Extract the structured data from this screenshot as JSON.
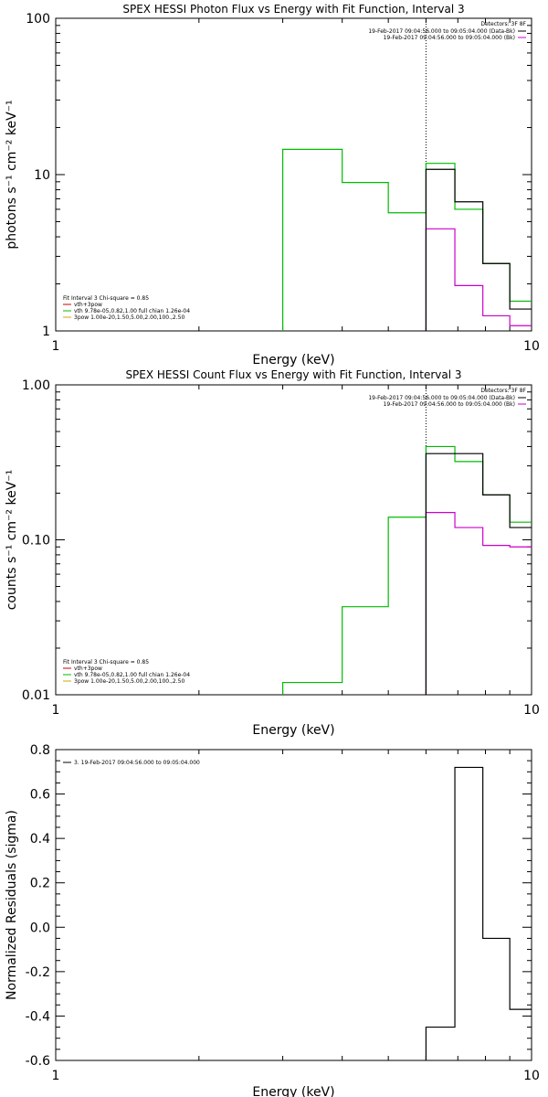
{
  "chart_data": [
    {
      "type": "line",
      "title": "SPEX HESSI Photon Flux vs Energy with Fit Function, Interval 3",
      "xlabel": "Energy (keV)",
      "ylabel": "photons s⁻¹ cm⁻² keV⁻¹",
      "xscale": "log",
      "yscale": "log",
      "xlim": [
        1,
        10
      ],
      "ylim": [
        1,
        100
      ],
      "xtick_labels": [
        "1",
        "10"
      ],
      "ytick_labels": [
        "1",
        "10",
        "100"
      ],
      "ytick_values": [
        1,
        10,
        100
      ],
      "vline_x": 6.0,
      "legend_right": {
        "header": "Detectors: 3F 8F",
        "entries": [
          {
            "label": "19-Feb-2017 09:04:56.000 to 09:05:04.000 (Data-Bk)",
            "color": "#000000"
          },
          {
            "label": "19-Feb-2017 09:04:56.000 to 09:05:04.000 (Bk)",
            "color": "#cc00cc"
          }
        ]
      },
      "legend_left": {
        "header": "Fit Interval 3   Chi-square = 0.85",
        "entries": [
          {
            "label": "vth+3pow",
            "color": "#cc0000"
          },
          {
            "label": "vth 9.78e-05,0.82,1.00  full chian 1.26e-04",
            "color": "#00bb00"
          },
          {
            "label": "3pow 1.00e-20,1.50,5.00,2.00,100.,2.50",
            "color": "#ccaa00"
          }
        ]
      },
      "series": [
        {
          "name": "Data-Bk",
          "color": "#000000",
          "edges": [
            6.0,
            6.9,
            7.9,
            9.0,
            10.0
          ],
          "values": [
            10.8,
            6.7,
            2.7,
            1.38
          ]
        },
        {
          "name": "Bk",
          "color": "#cc00cc",
          "edges": [
            6.0,
            6.9,
            7.9,
            9.0,
            10.0
          ],
          "values": [
            4.5,
            1.95,
            1.25,
            1.08
          ]
        },
        {
          "name": "vth 9.78e-05,0.82,1.00  full chian 1.26e-04",
          "color": "#00bb00",
          "edges": [
            3.0,
            4.0,
            5.0,
            6.0,
            6.9,
            7.9,
            9.0,
            10.0
          ],
          "values": [
            14.5,
            8.9,
            5.7,
            11.8,
            6.0,
            2.7,
            1.55
          ]
        }
      ]
    },
    {
      "type": "line",
      "title": "SPEX HESSI Count Flux vs Energy with Fit Function, Interval 3",
      "xlabel": "Energy (keV)",
      "ylabel": "counts s⁻¹ cm⁻² keV⁻¹",
      "xscale": "log",
      "yscale": "log",
      "xlim": [
        1,
        10
      ],
      "ylim": [
        0.01,
        1.0
      ],
      "xtick_labels": [
        "1",
        "10"
      ],
      "ytick_labels": [
        "0.01",
        "0.10",
        "1.00"
      ],
      "ytick_values": [
        0.01,
        0.1,
        1.0
      ],
      "vline_x": 6.0,
      "legend_right": {
        "header": "Detectors: 3F 8F",
        "entries": [
          {
            "label": "19-Feb-2017 09:04:56.000 to 09:05:04.000 (Data-Bk)",
            "color": "#000000"
          },
          {
            "label": "19-Feb-2017 09:04:56.000 to 09:05:04.000 (Bk)",
            "color": "#cc00cc"
          }
        ]
      },
      "legend_left": {
        "header": "Fit Interval 3   Chi-square = 0.85",
        "entries": [
          {
            "label": "vth+3pow",
            "color": "#cc0000"
          },
          {
            "label": "vth 9.78e-05,0.82,1.00  full chian 1.26e-04",
            "color": "#00bb00"
          },
          {
            "label": "3pow 1.00e-20,1.50,5.00,2.00,100.,2.50",
            "color": "#ccaa00"
          }
        ]
      },
      "series": [
        {
          "name": "Data-Bk",
          "color": "#000000",
          "edges": [
            6.0,
            6.9,
            7.9,
            9.0,
            10.0
          ],
          "values": [
            0.36,
            0.36,
            0.195,
            0.12
          ]
        },
        {
          "name": "Bk",
          "color": "#cc00cc",
          "edges": [
            6.0,
            6.9,
            7.9,
            9.0,
            10.0
          ],
          "values": [
            0.15,
            0.12,
            0.092,
            0.09
          ]
        },
        {
          "name": "vth 9.78e-05,0.82,1.00  full chian 1.26e-04",
          "color": "#00bb00",
          "edges": [
            3.0,
            4.0,
            5.0,
            6.0,
            6.9,
            7.9,
            9.0,
            10.0
          ],
          "values": [
            0.012,
            0.037,
            0.14,
            0.4,
            0.32,
            0.195,
            0.13
          ]
        }
      ]
    },
    {
      "type": "line",
      "title": "",
      "xlabel": "Energy (keV)",
      "ylabel": "Normalized Residuals (sigma)",
      "xscale": "log",
      "yscale": "linear",
      "xlim": [
        1,
        10
      ],
      "ylim": [
        -0.6,
        0.8
      ],
      "xtick_labels": [
        "1",
        "10"
      ],
      "ytick_labels": [
        "-0.6",
        "-0.4",
        "-0.2",
        "0.0",
        "0.2",
        "0.4",
        "0.6",
        "0.8"
      ],
      "ytick_values": [
        -0.6,
        -0.4,
        -0.2,
        0.0,
        0.2,
        0.4,
        0.6,
        0.8
      ],
      "legend_right": null,
      "legend_left": {
        "header": "",
        "entries": [
          {
            "label": "3. 19-Feb-2017 09:04:56.000 to 09:05:04.000",
            "color": "#000000"
          }
        ]
      },
      "series": [
        {
          "name": "3. 19-Feb-2017 09:04:56.000 to 09:05:04.000",
          "color": "#000000",
          "edges": [
            6.0,
            6.9,
            7.9,
            9.0,
            10.0
          ],
          "values": [
            -0.45,
            0.72,
            -0.05,
            -0.37
          ]
        }
      ]
    }
  ]
}
